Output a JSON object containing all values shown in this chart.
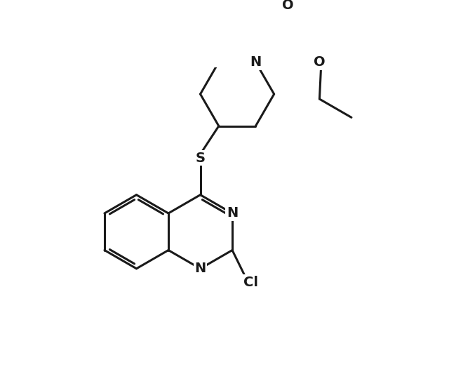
{
  "background_color": "#ffffff",
  "line_color": "#1a1a1a",
  "line_width": 2.2,
  "font_size_label": 14,
  "figsize": [
    6.4,
    5.33
  ],
  "dpi": 100,
  "xlim": [
    -1.0,
    9.5
  ],
  "ylim": [
    -1.0,
    8.5
  ]
}
